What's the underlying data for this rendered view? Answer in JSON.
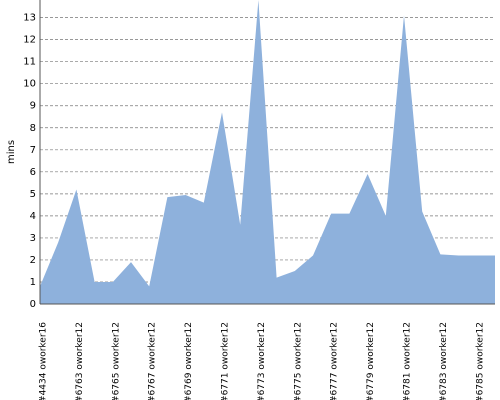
{
  "chart_data": {
    "type": "area",
    "y_label": "mins",
    "color": "#8eb1dc",
    "grid": true,
    "categories": [
      "#4434 oworker16",
      null,
      "#6763 oworker12",
      null,
      "#6765 oworker12",
      null,
      "#6767 oworker12",
      null,
      "#6769 oworker12",
      null,
      "#6771 oworker12",
      null,
      "#6773 oworker12",
      null,
      "#6775 oworker12",
      null,
      "#6777 oworker12",
      null,
      "#6779 oworker12",
      null,
      "#6781 oworker12",
      null,
      "#6783 oworker12",
      null,
      "#6785 oworker12",
      null
    ],
    "values": [
      0.8,
      2.8,
      5.2,
      1.0,
      1.0,
      1.9,
      0.8,
      4.85,
      4.95,
      4.6,
      8.7,
      3.6,
      13.8,
      1.2,
      1.5,
      2.2,
      4.1,
      4.1,
      5.9,
      4.0,
      13.1,
      4.2,
      2.25,
      2.2,
      2.2,
      2.2
    ],
    "ylim": [
      0,
      13.8
    ],
    "yticks": [
      0,
      1,
      2,
      3,
      4,
      5,
      6,
      7,
      8,
      9,
      10,
      11,
      12,
      13
    ]
  }
}
